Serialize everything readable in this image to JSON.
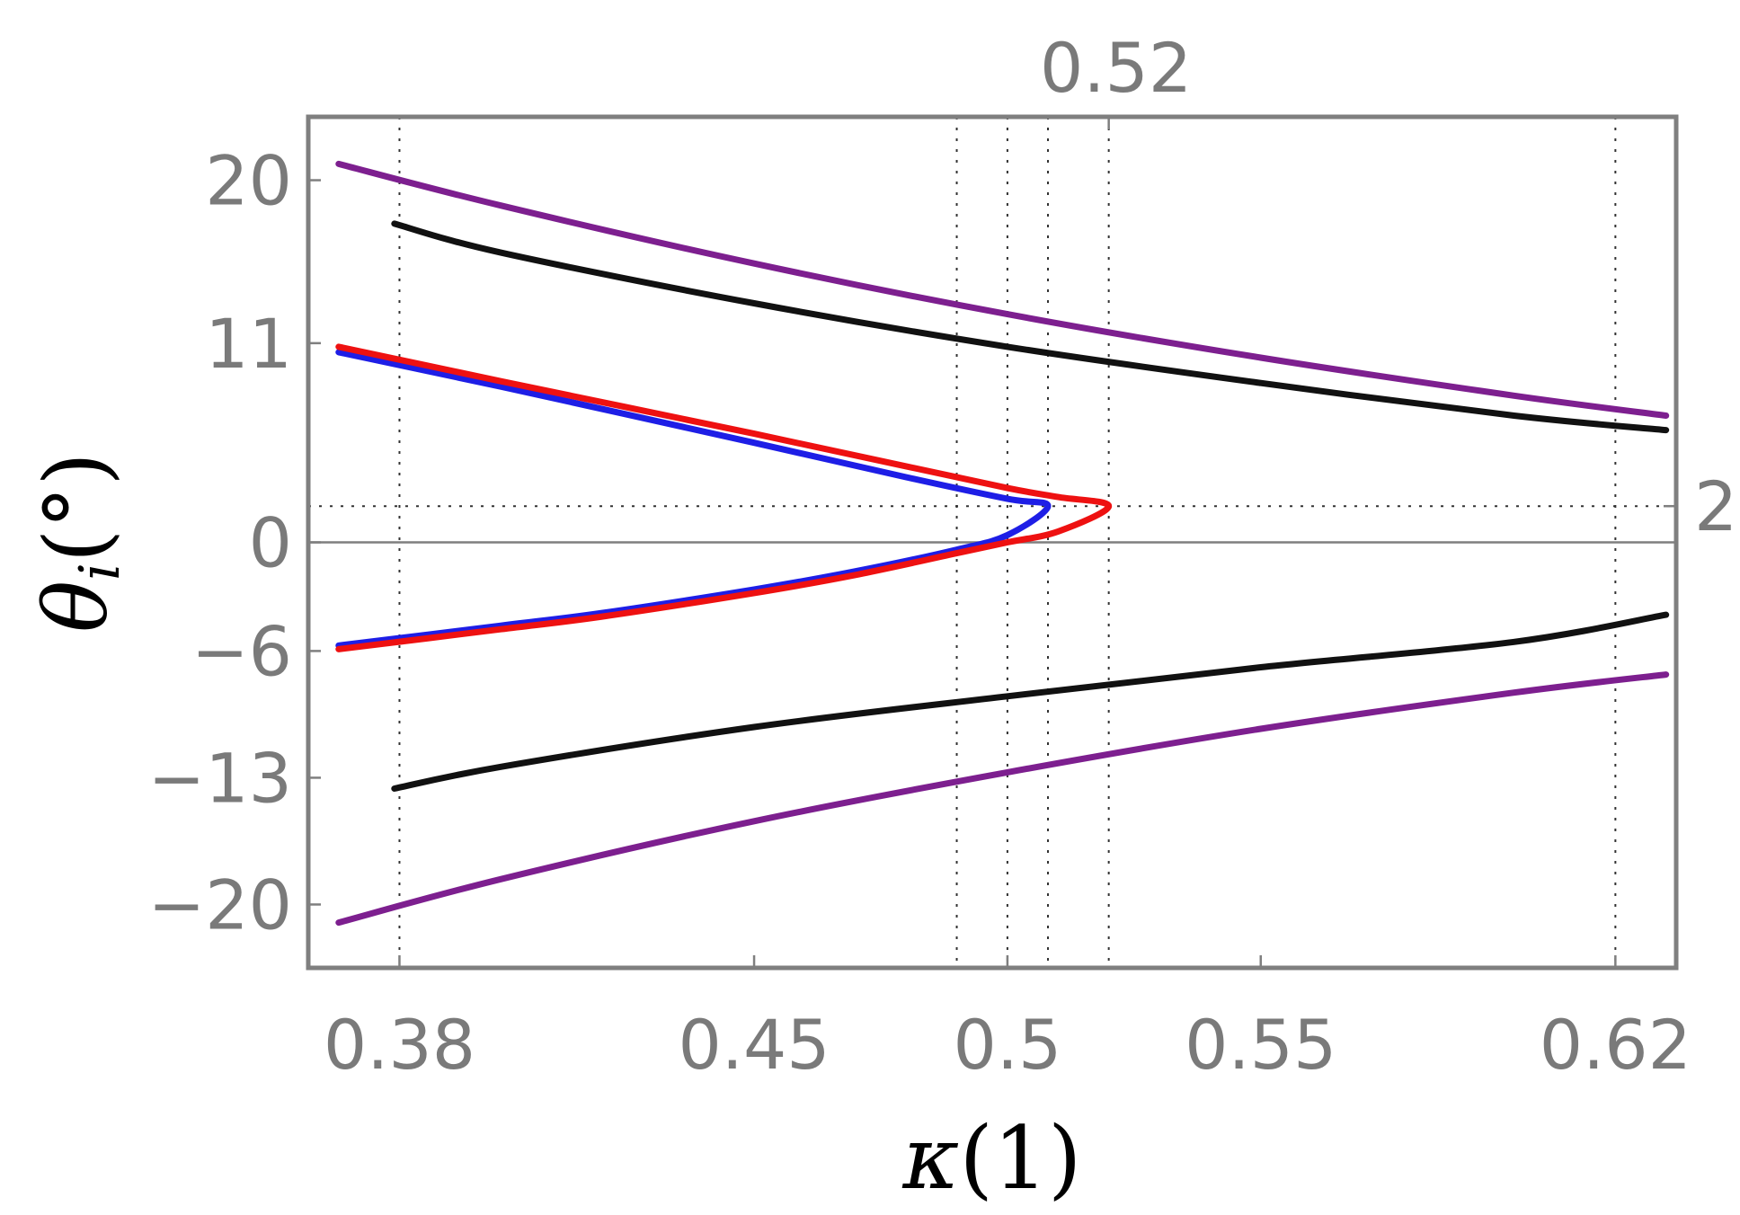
{
  "chart_data": {
    "type": "line",
    "title": "",
    "xlabel_symbol": "κ",
    "xlabel_unit": "(1)",
    "ylabel_symbol": "θ",
    "ylabel_subscript": "i",
    "ylabel_unit": "(°)",
    "xlim": [
      0.362,
      0.632
    ],
    "ylim": [
      -23.5,
      23.5
    ],
    "xticks": [
      {
        "value": 0.38,
        "label": "0.38"
      },
      {
        "value": 0.45,
        "label": "0.45"
      },
      {
        "value": 0.5,
        "label": "0.5"
      },
      {
        "value": 0.55,
        "label": "0.55"
      },
      {
        "value": 0.62,
        "label": "0.62"
      }
    ],
    "yticks": [
      {
        "value": 20,
        "label": "20"
      },
      {
        "value": 11,
        "label": "11"
      },
      {
        "value": 0,
        "label": "0"
      },
      {
        "value": -6,
        "label": "−6"
      },
      {
        "value": -13,
        "label": "−13"
      },
      {
        "value": -20,
        "label": "−20"
      }
    ],
    "top_ticks": [
      {
        "value": 0.52,
        "label": "0.52"
      }
    ],
    "right_ticks": [
      {
        "value": 2,
        "label": "2"
      }
    ],
    "gridlines_x": [
      0.38,
      0.49,
      0.5,
      0.508,
      0.52,
      0.62
    ],
    "gridlines_y": [
      2
    ],
    "series": [
      {
        "name": "purple-upper",
        "color": "#7d1f8f",
        "x": [
          0.368,
          0.4,
          0.45,
          0.5,
          0.55,
          0.6,
          0.63
        ],
        "y": [
          20.9,
          18.6,
          15.4,
          12.6,
          10.2,
          8.1,
          7.0
        ]
      },
      {
        "name": "purple-lower",
        "color": "#7d1f8f",
        "x": [
          0.368,
          0.4,
          0.45,
          0.5,
          0.55,
          0.6,
          0.63
        ],
        "y": [
          -21.0,
          -18.6,
          -15.4,
          -12.7,
          -10.3,
          -8.3,
          -7.3
        ]
      },
      {
        "name": "black-upper",
        "color": "#111111",
        "x": [
          0.379,
          0.4,
          0.45,
          0.5,
          0.55,
          0.6,
          0.63
        ],
        "y": [
          17.6,
          16.0,
          13.2,
          10.8,
          8.8,
          7.0,
          6.2
        ]
      },
      {
        "name": "black-lower",
        "color": "#111111",
        "x": [
          0.379,
          0.4,
          0.45,
          0.5,
          0.55,
          0.6,
          0.63
        ],
        "y": [
          -13.6,
          -12.4,
          -10.2,
          -8.5,
          -6.9,
          -5.5,
          -4.0
        ]
      },
      {
        "name": "blue",
        "color": "#1e1ee6",
        "x": [
          0.368,
          0.4,
          0.45,
          0.48,
          0.5,
          0.508,
          0.5,
          0.49,
          0.47,
          0.45,
          0.42,
          0.4,
          0.368
        ],
        "y": [
          10.5,
          8.6,
          5.5,
          3.6,
          2.4,
          2.0,
          0.4,
          -0.4,
          -1.6,
          -2.6,
          -3.9,
          -4.6,
          -5.7
        ]
      },
      {
        "name": "red",
        "color": "#ee1111",
        "x": [
          0.368,
          0.4,
          0.45,
          0.48,
          0.5,
          0.51,
          0.52,
          0.51,
          0.5,
          0.49,
          0.47,
          0.45,
          0.42,
          0.4,
          0.368
        ],
        "y": [
          10.8,
          8.9,
          6.0,
          4.2,
          3.0,
          2.5,
          2.0,
          0.6,
          0.0,
          -0.6,
          -1.8,
          -2.8,
          -4.1,
          -4.8,
          -5.9
        ]
      }
    ]
  }
}
